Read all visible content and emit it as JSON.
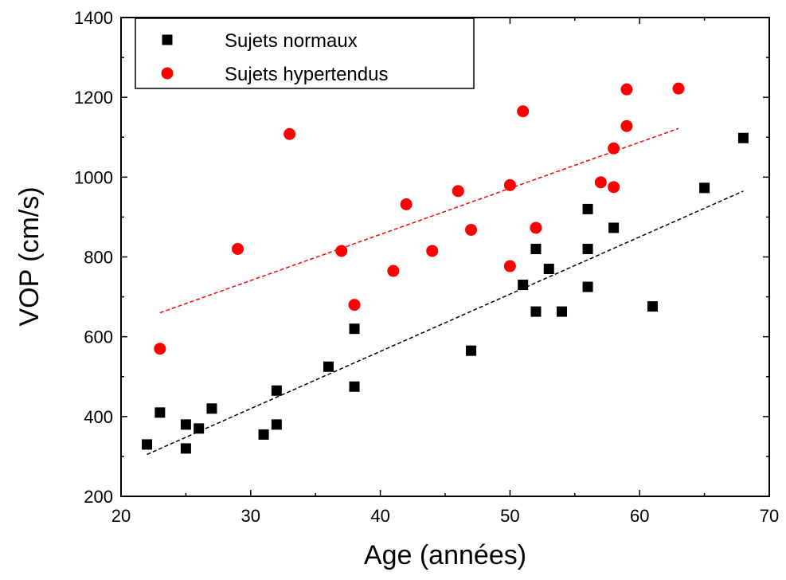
{
  "chart_data": {
    "type": "scatter",
    "xlabel": "Age (années)",
    "ylabel": "VOP (cm/s)",
    "xlim": [
      20,
      70
    ],
    "xticks": [
      20,
      30,
      40,
      50,
      60,
      70
    ],
    "ylim": [
      200,
      1400
    ],
    "yticks": [
      200,
      400,
      600,
      800,
      1000,
      1200,
      1400
    ],
    "legend": "upper left",
    "series": [
      {
        "name": "Sujets normaux",
        "color": "#000000",
        "marker": "square",
        "x": [
          22,
          23,
          25,
          25,
          26,
          27,
          31,
          32,
          32,
          36,
          38,
          38,
          47,
          51,
          52,
          52,
          53,
          54,
          56,
          56,
          56,
          58,
          61,
          65,
          68
        ],
        "values": [
          330,
          410,
          380,
          320,
          370,
          420,
          355,
          465,
          380,
          525,
          620,
          475,
          565,
          730,
          820,
          663,
          770,
          663,
          920,
          820,
          725,
          873,
          676,
          973,
          1098
        ]
      },
      {
        "name": "Sujets hypertendus",
        "color": "#ff0000",
        "marker": "circle",
        "x": [
          23,
          29,
          33,
          37,
          38,
          41,
          42,
          44,
          46,
          47,
          50,
          50,
          51,
          52,
          57,
          58,
          58,
          59,
          59,
          63
        ],
        "values": [
          570,
          820,
          1108,
          815,
          680,
          765,
          932,
          815,
          965,
          868,
          980,
          777,
          1165,
          873,
          987,
          1072,
          975,
          1128,
          1220,
          1222
        ]
      }
    ],
    "trendlines": [
      {
        "color": "#000000",
        "x": [
          22,
          68
        ],
        "values": [
          305,
          965
        ]
      },
      {
        "color": "#ff0000",
        "x": [
          23,
          63
        ],
        "values": [
          660,
          1122
        ]
      }
    ]
  }
}
